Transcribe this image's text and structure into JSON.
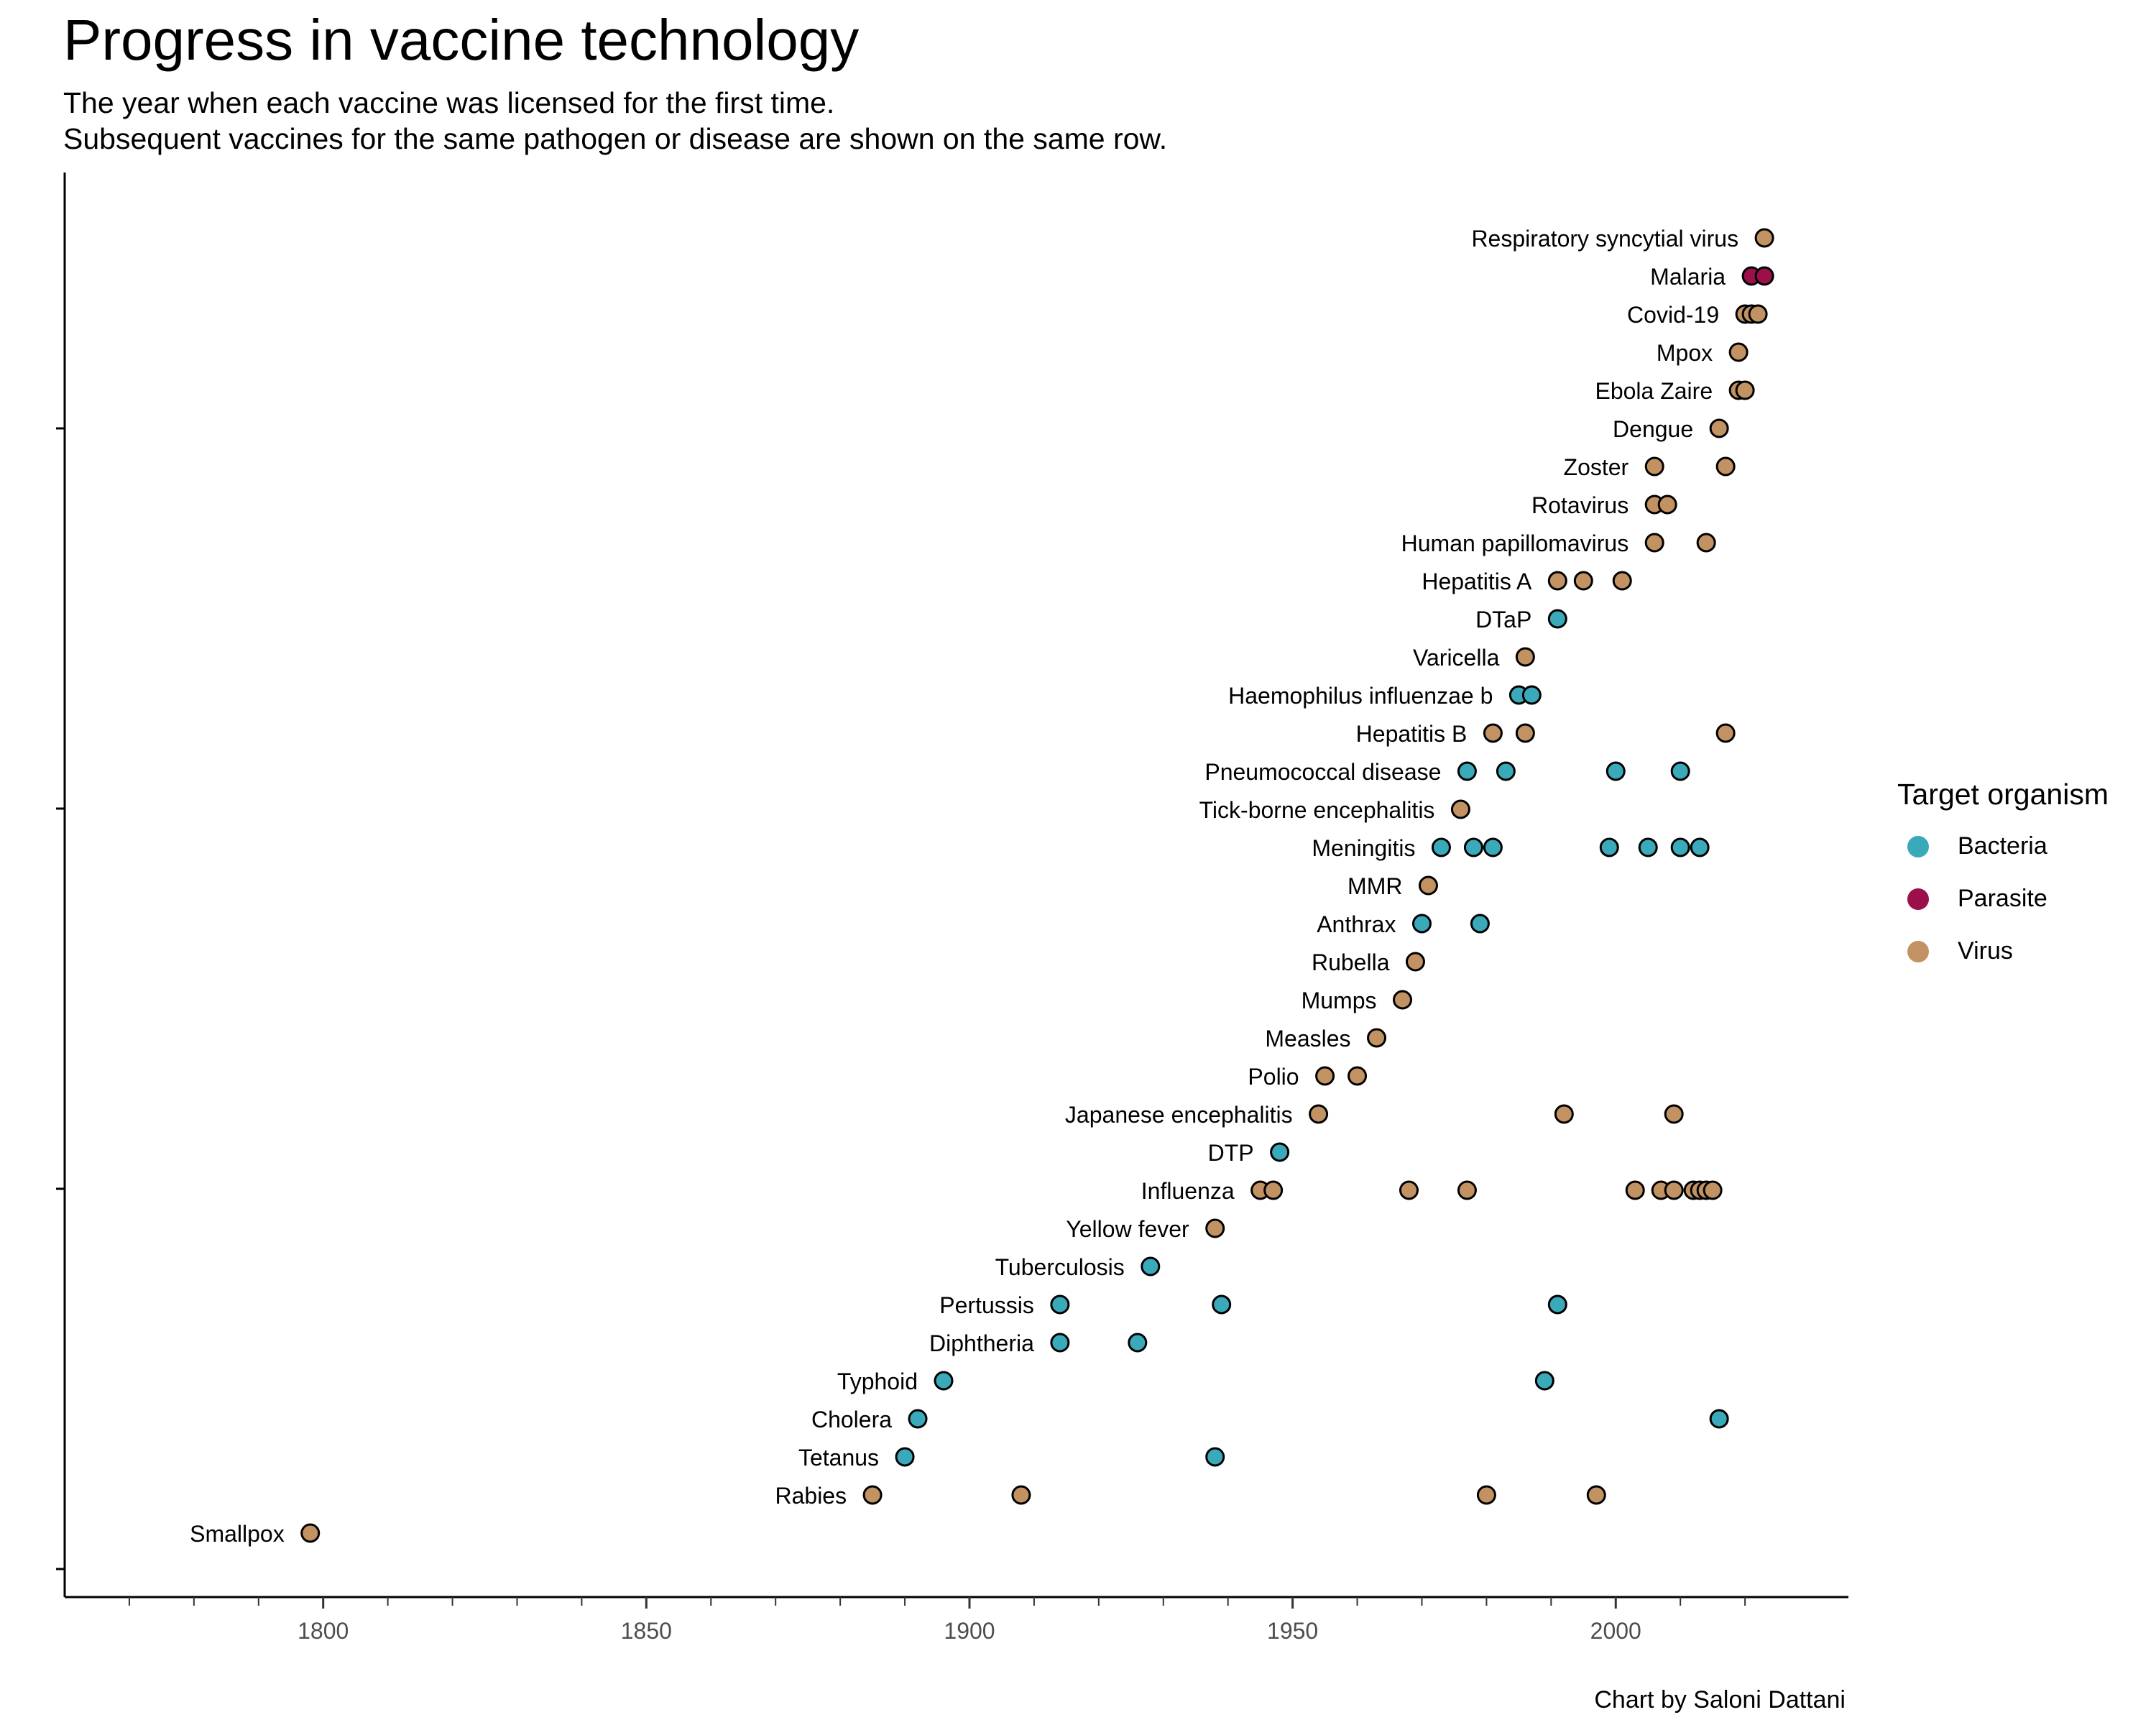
{
  "title": "Progress in vaccine technology",
  "subtitle_lines": [
    "The year when each vaccine was licensed for the first time.",
    "Subsequent vaccines for the same pathogen or disease are shown on the same row."
  ],
  "caption": "Chart by Saloni Dattani",
  "legend": {
    "title": "Target organism",
    "items": [
      {
        "label": "Bacteria",
        "color": "#3aa9ba"
      },
      {
        "label": "Parasite",
        "color": "#9b0f4a"
      },
      {
        "label": "Virus",
        "color": "#c29262"
      }
    ]
  },
  "chart_data": {
    "type": "scatter",
    "title": "Progress in vaccine technology",
    "xlabel": "",
    "ylabel": "",
    "xlim": [
      1760,
      2036
    ],
    "x_ticks": [
      1800,
      1850,
      1900,
      1950,
      2000
    ],
    "grid": false,
    "legend_position": "right",
    "colors": {
      "Bacteria": "#3aa9ba",
      "Parasite": "#9b0f4a",
      "Virus": "#c29262"
    },
    "rows": [
      {
        "label": "Smallpox",
        "organism": "Virus",
        "years": [
          1798
        ]
      },
      {
        "label": "Rabies",
        "organism": "Virus",
        "years": [
          1885,
          1908,
          1980,
          1997
        ]
      },
      {
        "label": "Tetanus",
        "organism": "Bacteria",
        "years": [
          1890,
          1938
        ]
      },
      {
        "label": "Cholera",
        "organism": "Bacteria",
        "years": [
          1892,
          2016
        ]
      },
      {
        "label": "Typhoid",
        "organism": "Bacteria",
        "years": [
          1896,
          1989
        ]
      },
      {
        "label": "Diphtheria",
        "organism": "Bacteria",
        "years": [
          1914,
          1926
        ]
      },
      {
        "label": "Pertussis",
        "organism": "Bacteria",
        "years": [
          1914,
          1939,
          1991
        ]
      },
      {
        "label": "Tuberculosis",
        "organism": "Bacteria",
        "years": [
          1928
        ]
      },
      {
        "label": "Yellow fever",
        "organism": "Virus",
        "years": [
          1938
        ]
      },
      {
        "label": "Influenza",
        "organism": "Virus",
        "years": [
          1945,
          1947,
          1968,
          1977,
          2003,
          2007,
          2009,
          2012,
          2013,
          2014,
          2015
        ]
      },
      {
        "label": "DTP",
        "organism": "Bacteria",
        "years": [
          1948
        ]
      },
      {
        "label": "Japanese encephalitis",
        "organism": "Virus",
        "years": [
          1954,
          1992,
          2009
        ]
      },
      {
        "label": "Polio",
        "organism": "Virus",
        "years": [
          1955,
          1960
        ]
      },
      {
        "label": "Measles",
        "organism": "Virus",
        "years": [
          1963
        ]
      },
      {
        "label": "Mumps",
        "organism": "Virus",
        "years": [
          1967
        ]
      },
      {
        "label": "Rubella",
        "organism": "Virus",
        "years": [
          1969
        ]
      },
      {
        "label": "Anthrax",
        "organism": "Bacteria",
        "years": [
          1970,
          1979
        ]
      },
      {
        "label": "MMR",
        "organism": "Virus",
        "years": [
          1971
        ]
      },
      {
        "label": "Meningitis",
        "organism": "Bacteria",
        "years": [
          1973,
          1978,
          1981,
          1999,
          2005,
          2010,
          2013
        ]
      },
      {
        "label": "Tick-borne encephalitis",
        "organism": "Virus",
        "years": [
          1976
        ]
      },
      {
        "label": "Pneumococcal disease",
        "organism": "Bacteria",
        "years": [
          1977,
          1983,
          2000,
          2010
        ]
      },
      {
        "label": "Hepatitis B",
        "organism": "Virus",
        "years": [
          1981,
          1986,
          2017
        ]
      },
      {
        "label": "Haemophilus influenzae b",
        "organism": "Bacteria",
        "years": [
          1985,
          1987
        ]
      },
      {
        "label": "Varicella",
        "organism": "Virus",
        "years": [
          1986
        ]
      },
      {
        "label": "DTaP",
        "organism": "Bacteria",
        "years": [
          1991
        ]
      },
      {
        "label": "Hepatitis A",
        "organism": "Virus",
        "years": [
          1991,
          1995,
          2001
        ]
      },
      {
        "label": "Human papillomavirus",
        "organism": "Virus",
        "years": [
          2006,
          2014
        ]
      },
      {
        "label": "Rotavirus",
        "organism": "Virus",
        "years": [
          2006,
          2008
        ]
      },
      {
        "label": "Zoster",
        "organism": "Virus",
        "years": [
          2006,
          2017
        ]
      },
      {
        "label": "Dengue",
        "organism": "Virus",
        "years": [
          2016
        ]
      },
      {
        "label": "Ebola Zaire",
        "organism": "Virus",
        "years": [
          2019,
          2020
        ]
      },
      {
        "label": "Mpox",
        "organism": "Virus",
        "years": [
          2019
        ]
      },
      {
        "label": "Covid-19",
        "organism": "Virus",
        "years": [
          2020,
          2021,
          2022
        ]
      },
      {
        "label": "Malaria",
        "organism": "Parasite",
        "years": [
          2021,
          2023
        ]
      },
      {
        "label": "Respiratory syncytial virus",
        "organism": "Virus",
        "years": [
          2023
        ]
      }
    ]
  }
}
